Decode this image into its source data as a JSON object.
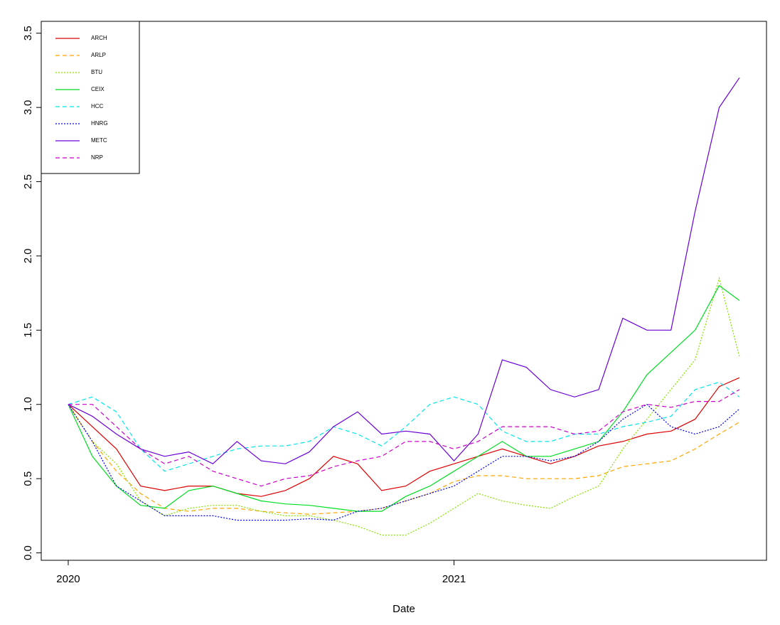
{
  "chart_data": {
    "type": "line",
    "xlabel": "Date",
    "x": [
      2020,
      2020.0625,
      2020.125,
      2020.1875,
      2020.25,
      2020.3125,
      2020.375,
      2020.4375,
      2020.5,
      2020.5625,
      2020.625,
      2020.6875,
      2020.75,
      2020.8125,
      2020.875,
      2020.9375,
      2021,
      2021.0625,
      2021.125,
      2021.1875,
      2021.25,
      2021.3125,
      2021.375,
      2021.4375,
      2021.5,
      2021.5625,
      2021.625,
      2021.6875,
      2021.74
    ],
    "xlim": [
      2019.93,
      2021.81
    ],
    "xticks": [
      2020,
      2021
    ],
    "ylim": [
      -0.05,
      3.58
    ],
    "yticks": [
      {
        "value": 0,
        "label": "0.0"
      },
      0.5,
      {
        "value": 1,
        "label": "1.0"
      },
      1.5,
      {
        "value": 2,
        "label": "2.0"
      },
      2.5,
      {
        "value": 3,
        "label": "3.0"
      },
      3.5
    ],
    "legend": "top-left",
    "series": [
      {
        "name": "ARCH",
        "color": "#dd0000",
        "dash": "solid",
        "values": [
          1.0,
          0.85,
          0.7,
          0.45,
          0.42,
          0.45,
          0.45,
          0.4,
          0.38,
          0.42,
          0.5,
          0.65,
          0.6,
          0.42,
          0.45,
          0.55,
          0.6,
          0.65,
          0.7,
          0.65,
          0.6,
          0.65,
          0.72,
          0.75,
          0.8,
          0.82,
          0.9,
          1.12,
          1.18
        ]
      },
      {
        "name": "ARLP",
        "color": "#ffa500",
        "dash": "dashed",
        "values": [
          1.0,
          0.75,
          0.55,
          0.4,
          0.3,
          0.28,
          0.3,
          0.3,
          0.28,
          0.27,
          0.26,
          0.27,
          0.28,
          0.3,
          0.35,
          0.4,
          0.48,
          0.52,
          0.52,
          0.5,
          0.5,
          0.5,
          0.52,
          0.58,
          0.6,
          0.62,
          0.7,
          0.8,
          0.88
        ]
      },
      {
        "name": "BTU",
        "color": "#88e000",
        "dash": "dotted",
        "values": [
          1.0,
          0.75,
          0.6,
          0.35,
          0.25,
          0.3,
          0.32,
          0.32,
          0.28,
          0.25,
          0.25,
          0.22,
          0.18,
          0.12,
          0.12,
          0.2,
          0.3,
          0.4,
          0.35,
          0.32,
          0.3,
          0.38,
          0.45,
          0.7,
          0.9,
          1.1,
          1.3,
          1.85,
          1.32
        ]
      },
      {
        "name": "CEIX",
        "color": "#00dd22",
        "dash": "solid",
        "values": [
          1.0,
          0.65,
          0.45,
          0.32,
          0.3,
          0.42,
          0.45,
          0.4,
          0.35,
          0.33,
          0.32,
          0.3,
          0.28,
          0.28,
          0.38,
          0.45,
          0.55,
          0.65,
          0.75,
          0.65,
          0.65,
          0.7,
          0.75,
          0.95,
          1.2,
          1.35,
          1.5,
          1.8,
          1.7
        ]
      },
      {
        "name": "HCC",
        "color": "#00e5ee",
        "dash": "dashed",
        "values": [
          1.0,
          1.05,
          0.95,
          0.7,
          0.55,
          0.6,
          0.65,
          0.7,
          0.72,
          0.72,
          0.75,
          0.85,
          0.8,
          0.72,
          0.85,
          1.0,
          1.05,
          1.0,
          0.82,
          0.75,
          0.75,
          0.8,
          0.8,
          0.85,
          0.88,
          0.92,
          1.1,
          1.15,
          1.05
        ]
      },
      {
        "name": "HNRG",
        "color": "#0000ee",
        "dash": "dotted",
        "values": [
          1.0,
          0.75,
          0.45,
          0.35,
          0.25,
          0.25,
          0.25,
          0.22,
          0.22,
          0.22,
          0.23,
          0.22,
          0.28,
          0.3,
          0.35,
          0.4,
          0.45,
          0.55,
          0.65,
          0.65,
          0.62,
          0.65,
          0.75,
          0.9,
          1.0,
          0.85,
          0.8,
          0.85,
          0.97
        ]
      },
      {
        "name": "METC",
        "color": "#6a00d8",
        "dash": "solid",
        "values": [
          1.0,
          0.92,
          0.8,
          0.7,
          0.65,
          0.68,
          0.6,
          0.75,
          0.62,
          0.6,
          0.68,
          0.85,
          0.95,
          0.8,
          0.82,
          0.8,
          0.62,
          0.8,
          1.3,
          1.25,
          1.1,
          1.05,
          1.1,
          1.58,
          1.5,
          1.5,
          2.3,
          3.0,
          3.2
        ]
      },
      {
        "name": "NRP",
        "color": "#cc00cc",
        "dash": "dashed",
        "values": [
          1.0,
          1.0,
          0.85,
          0.7,
          0.6,
          0.65,
          0.55,
          0.5,
          0.45,
          0.5,
          0.52,
          0.58,
          0.62,
          0.65,
          0.75,
          0.75,
          0.7,
          0.75,
          0.85,
          0.85,
          0.85,
          0.8,
          0.82,
          0.95,
          1.0,
          0.98,
          1.02,
          1.02,
          1.1
        ]
      }
    ]
  }
}
